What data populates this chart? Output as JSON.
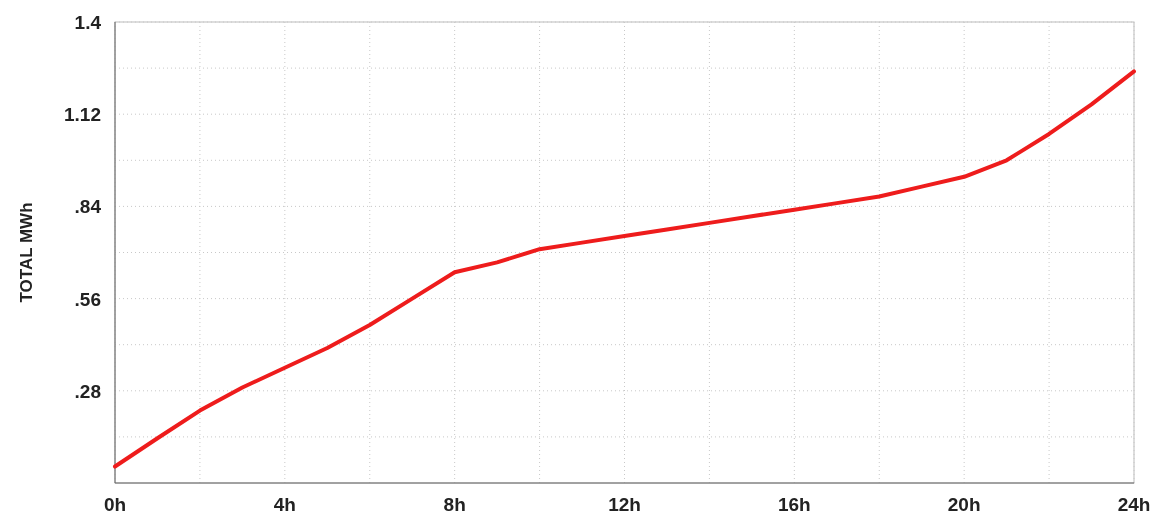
{
  "chart_data": {
    "type": "line",
    "ylabel": "TOTAL MWh",
    "x": [
      0,
      1,
      2,
      3,
      4,
      5,
      6,
      7,
      8,
      9,
      10,
      11,
      12,
      13,
      14,
      15,
      16,
      17,
      18,
      19,
      20,
      21,
      22,
      23,
      24
    ],
    "series": [
      {
        "color": "#ee1c1c",
        "values": [
          0.05,
          0.136,
          0.22,
          0.29,
          0.35,
          0.41,
          0.48,
          0.56,
          0.64,
          0.67,
          0.71,
          0.73,
          0.75,
          0.77,
          0.79,
          0.81,
          0.83,
          0.85,
          0.87,
          0.9,
          0.93,
          0.98,
          1.06,
          1.15,
          1.25
        ]
      }
    ],
    "xlim": [
      0,
      24
    ],
    "xticks": [
      {
        "value": 0,
        "label": "0h"
      },
      {
        "value": 2,
        "label": null
      },
      {
        "value": 4,
        "label": "4h"
      },
      {
        "value": 6,
        "label": null
      },
      {
        "value": 8,
        "label": "8h"
      },
      {
        "value": 10,
        "label": null
      },
      {
        "value": 12,
        "label": "12h"
      },
      {
        "value": 14,
        "label": null
      },
      {
        "value": 16,
        "label": "16h"
      },
      {
        "value": 18,
        "label": null
      },
      {
        "value": 20,
        "label": "20h"
      },
      {
        "value": 22,
        "label": null
      },
      {
        "value": 24,
        "label": "24h"
      }
    ],
    "ylim": [
      0,
      1.4
    ],
    "yticks": [
      {
        "value": 0.14,
        "label": null
      },
      {
        "value": 0.28,
        "label": ".28"
      },
      {
        "value": 0.42,
        "label": null
      },
      {
        "value": 0.56,
        "label": ".56"
      },
      {
        "value": 0.7,
        "label": null
      },
      {
        "value": 0.84,
        "label": ".84"
      },
      {
        "value": 0.98,
        "label": null
      },
      {
        "value": 1.12,
        "label": "1.12"
      },
      {
        "value": 1.26,
        "label": null
      },
      {
        "value": 1.4,
        "label": "1.4"
      }
    ],
    "grid": true,
    "line_style": "solid",
    "marker": "none"
  }
}
